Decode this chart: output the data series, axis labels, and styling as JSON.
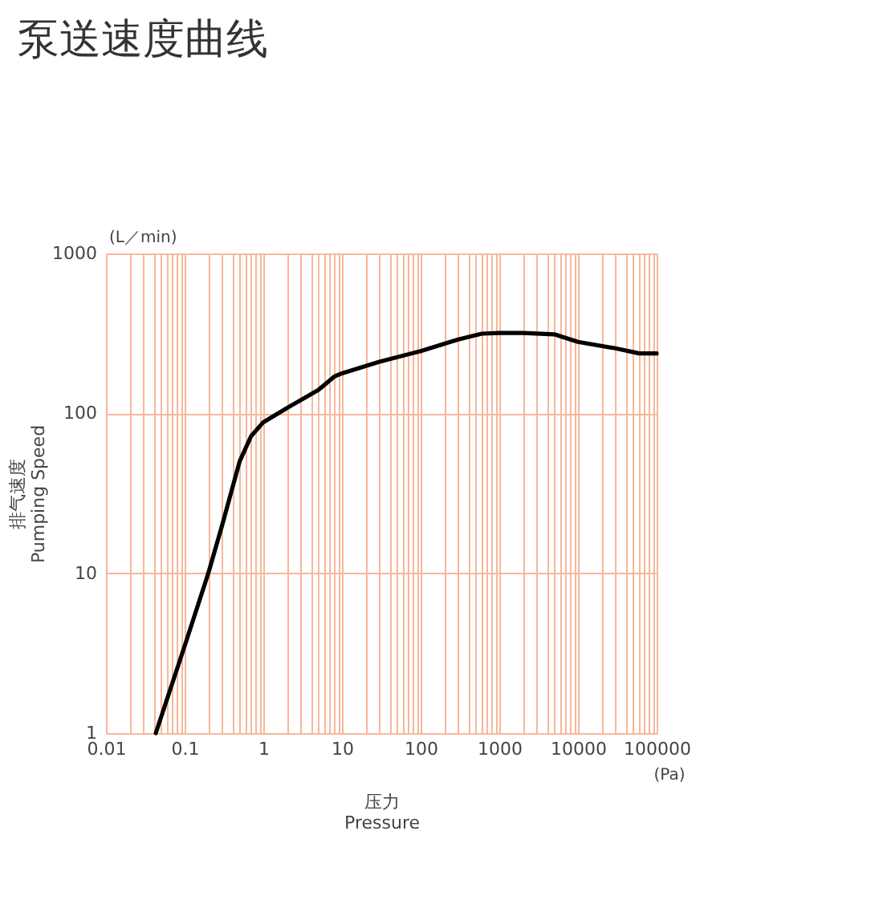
{
  "chart_data": {
    "type": "line",
    "title": "泵送速度曲线",
    "xlabel": [
      "压力",
      "Pressure"
    ],
    "ylabel": [
      "排气速度",
      "Pumping Speed"
    ],
    "annotations": [
      "(L／min)",
      "(Pa)"
    ],
    "log": "xy",
    "grid": true,
    "marker": "none",
    "line_style": "solid",
    "xlim": [
      0.01,
      100000
    ],
    "ylim": [
      1,
      1000
    ],
    "xticks": [
      0.01,
      {
        "value": 0.02,
        "label": null
      },
      {
        "value": 0.03,
        "label": null
      },
      {
        "value": 0.04,
        "label": null
      },
      {
        "value": 0.05,
        "label": null
      },
      {
        "value": 0.06,
        "label": null
      },
      {
        "value": 0.07,
        "label": null
      },
      {
        "value": 0.08,
        "label": null
      },
      {
        "value": 0.09,
        "label": null
      },
      0.1,
      {
        "value": 0.2,
        "label": null
      },
      {
        "value": 0.3,
        "label": null
      },
      {
        "value": 0.4,
        "label": null
      },
      {
        "value": 0.5,
        "label": null
      },
      {
        "value": 0.6,
        "label": null
      },
      {
        "value": 0.7,
        "label": null
      },
      {
        "value": 0.8,
        "label": null
      },
      {
        "value": 0.9,
        "label": null
      },
      1,
      {
        "value": 2,
        "label": null
      },
      {
        "value": 3,
        "label": null
      },
      {
        "value": 4,
        "label": null
      },
      {
        "value": 5,
        "label": null
      },
      {
        "value": 6,
        "label": null
      },
      {
        "value": 7,
        "label": null
      },
      {
        "value": 8,
        "label": null
      },
      {
        "value": 9,
        "label": null
      },
      10,
      {
        "value": 20,
        "label": null
      },
      {
        "value": 30,
        "label": null
      },
      {
        "value": 40,
        "label": null
      },
      {
        "value": 50,
        "label": null
      },
      {
        "value": 60,
        "label": null
      },
      {
        "value": 70,
        "label": null
      },
      {
        "value": 80,
        "label": null
      },
      {
        "value": 90,
        "label": null
      },
      100,
      {
        "value": 200,
        "label": null
      },
      {
        "value": 300,
        "label": null
      },
      {
        "value": 400,
        "label": null
      },
      {
        "value": 500,
        "label": null
      },
      {
        "value": 600,
        "label": null
      },
      {
        "value": 700,
        "label": null
      },
      {
        "value": 800,
        "label": null
      },
      {
        "value": 900,
        "label": null
      },
      1000,
      {
        "value": 2000,
        "label": null
      },
      {
        "value": 3000,
        "label": null
      },
      {
        "value": 4000,
        "label": null
      },
      {
        "value": 5000,
        "label": null
      },
      {
        "value": 6000,
        "label": null
      },
      {
        "value": 7000,
        "label": null
      },
      {
        "value": 8000,
        "label": null
      },
      {
        "value": 9000,
        "label": null
      },
      10000,
      {
        "value": 20000,
        "label": null
      },
      {
        "value": 30000,
        "label": null
      },
      {
        "value": 40000,
        "label": null
      },
      {
        "value": 50000,
        "label": null
      },
      {
        "value": 60000,
        "label": null
      },
      {
        "value": 70000,
        "label": null
      },
      {
        "value": 80000,
        "label": null
      },
      {
        "value": 90000,
        "label": null
      },
      100000
    ],
    "yticks": [
      1,
      10,
      100,
      1000
    ],
    "x": [
      0.043,
      0.1,
      0.2,
      0.3,
      0.5,
      0.7,
      1,
      2,
      5,
      8,
      10,
      30,
      100,
      300,
      600,
      1000,
      2000,
      5000,
      10000,
      30000,
      60000,
      100000
    ],
    "series": [
      {
        "color": "#000000",
        "values": [
          1,
          3.5,
          10,
          20,
          50,
          72,
          88,
          108,
          140,
          170,
          178,
          210,
          245,
          290,
          315,
          318,
          318,
          312,
          280,
          255,
          237,
          237
        ]
      }
    ]
  }
}
